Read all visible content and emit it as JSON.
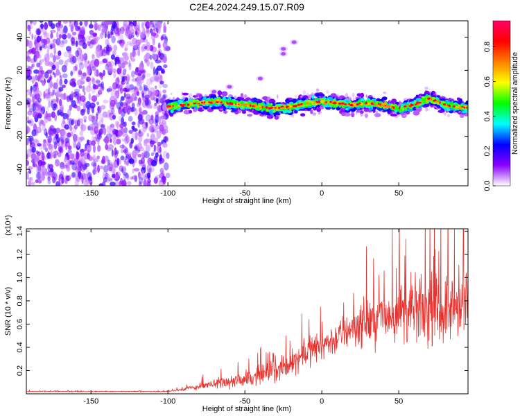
{
  "title": "C2E4.2024.249.15.07.R09",
  "chart_data": [
    {
      "type": "heatmap",
      "xlabel": "Height of straight line (km)",
      "ylabel": "Frequency (Hz)",
      "xlim": [
        -192,
        95
      ],
      "ylim": [
        -50,
        50
      ],
      "x_ticks": [
        -150,
        -100,
        -50,
        0,
        50
      ],
      "y_ticks": [
        -40,
        -20,
        0,
        20,
        40
      ],
      "grid": false,
      "noise_region_x": [
        -192,
        -100
      ],
      "signal_ridge": [
        {
          "x": -100,
          "y": -2
        },
        {
          "x": -90,
          "y": -1
        },
        {
          "x": -80,
          "y": 0
        },
        {
          "x": -70,
          "y": 1
        },
        {
          "x": -60,
          "y": 0
        },
        {
          "x": -50,
          "y": -1
        },
        {
          "x": -40,
          "y": -2
        },
        {
          "x": -30,
          "y": -3
        },
        {
          "x": -20,
          "y": -2
        },
        {
          "x": -10,
          "y": 0
        },
        {
          "x": 0,
          "y": 1
        },
        {
          "x": 10,
          "y": 0
        },
        {
          "x": 20,
          "y": -1
        },
        {
          "x": 30,
          "y": 0
        },
        {
          "x": 40,
          "y": -1
        },
        {
          "x": 50,
          "y": -3
        },
        {
          "x": 60,
          "y": -1
        },
        {
          "x": 70,
          "y": 3
        },
        {
          "x": 80,
          "y": -1
        },
        {
          "x": 95,
          "y": -3
        }
      ],
      "secondary_feature": [
        {
          "x": -80,
          "y": 5
        },
        {
          "x": -70,
          "y": 7
        },
        {
          "x": -60,
          "y": 10
        },
        {
          "x": -40,
          "y": 15
        },
        {
          "x": -25,
          "y": 30
        },
        {
          "x": -18,
          "y": 37
        },
        {
          "x": -25,
          "y": 33
        }
      ],
      "colorbar": {
        "label": "Normalized spectral amplitude",
        "range": [
          0.0,
          0.95
        ],
        "ticks": [
          0.0,
          0.2,
          0.4,
          0.6,
          0.8
        ],
        "colormap": [
          "#ffffff",
          "#8a00ff",
          "#0000ff",
          "#00ffff",
          "#00ff00",
          "#ffff00",
          "#ff8000",
          "#ff0000",
          "#ff0066"
        ]
      }
    },
    {
      "type": "line",
      "xlabel": "Height of straight line (km)",
      "ylabel": "SNR (10 * v/v)",
      "y_scale_label": "(x10⁴)",
      "xlim": [
        -192,
        95
      ],
      "ylim": [
        0,
        1.42
      ],
      "x_ticks": [
        -150,
        -100,
        -50,
        0,
        50
      ],
      "y_ticks": [
        0.2,
        0.4,
        0.6,
        0.8,
        1.0,
        1.2,
        1.4
      ],
      "grid": false,
      "series_color": "#e8302c",
      "envelope": [
        {
          "x": -192,
          "mean": 0.02,
          "spread": 0.005
        },
        {
          "x": -100,
          "mean": 0.02,
          "spread": 0.005
        },
        {
          "x": -95,
          "mean": 0.03,
          "spread": 0.01
        },
        {
          "x": -80,
          "mean": 0.06,
          "spread": 0.03
        },
        {
          "x": -60,
          "mean": 0.1,
          "spread": 0.06
        },
        {
          "x": -40,
          "mean": 0.16,
          "spread": 0.1
        },
        {
          "x": -25,
          "mean": 0.22,
          "spread": 0.12
        },
        {
          "x": -10,
          "mean": 0.36,
          "spread": 0.15
        },
        {
          "x": 0,
          "mean": 0.42,
          "spread": 0.15
        },
        {
          "x": 10,
          "mean": 0.48,
          "spread": 0.18
        },
        {
          "x": 20,
          "mean": 0.58,
          "spread": 0.22
        },
        {
          "x": 30,
          "mean": 0.62,
          "spread": 0.25
        },
        {
          "x": 45,
          "mean": 0.68,
          "spread": 0.3
        },
        {
          "x": 60,
          "mean": 0.72,
          "spread": 0.35
        },
        {
          "x": 75,
          "mean": 0.72,
          "spread": 0.35
        },
        {
          "x": 95,
          "mean": 0.75,
          "spread": 0.35
        }
      ]
    }
  ]
}
